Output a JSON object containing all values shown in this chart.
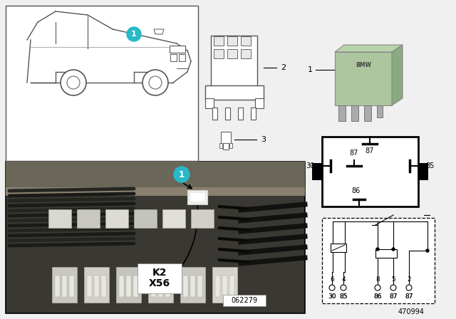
{
  "bg_color": "#f0f0f0",
  "fig_width": 6.4,
  "fig_height": 4.48,
  "part_number": "470994",
  "diagram_number": "062279",
  "cyan_color": "#29b8c8",
  "relay_green": "#adc6a0",
  "relay_green2": "#b8d4aa",
  "pin_labels": [
    "87",
    "87",
    "85",
    "30",
    "86"
  ],
  "circuit_pins_top": [
    "6",
    "4",
    "8",
    "5",
    "2"
  ],
  "circuit_pins_bottom": [
    "30",
    "85",
    "86",
    "87",
    "87"
  ],
  "label_k2": "K2",
  "label_x56": "X56",
  "photo_dark": "#3a3832",
  "photo_mid": "#5a5650",
  "connector_color": "#d0cfc8",
  "wire_dark": "#1a1a16"
}
